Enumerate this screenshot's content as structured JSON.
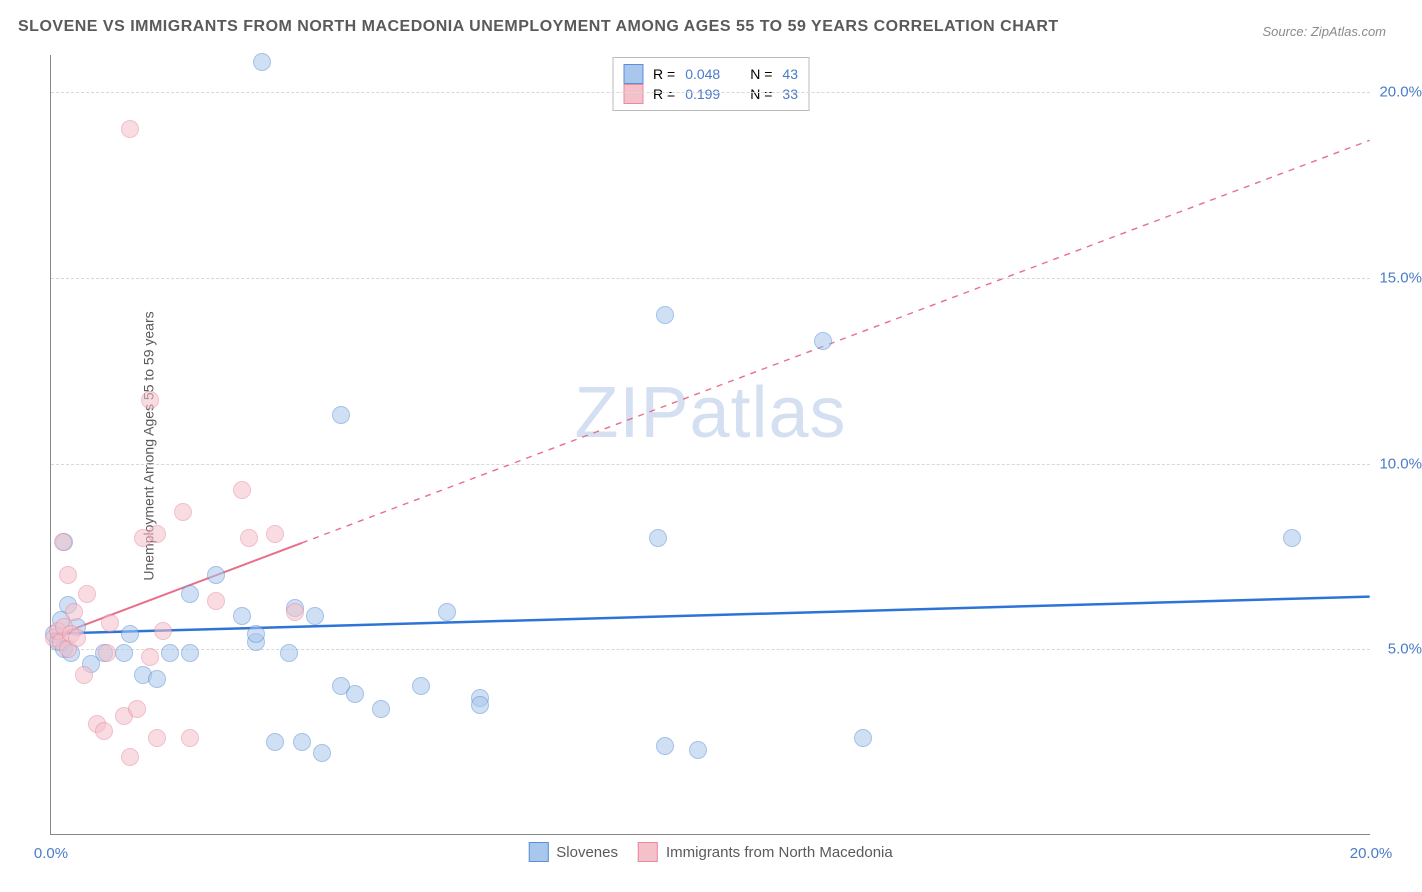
{
  "title": "SLOVENE VS IMMIGRANTS FROM NORTH MACEDONIA UNEMPLOYMENT AMONG AGES 55 TO 59 YEARS CORRELATION CHART",
  "source_label": "Source: ZipAtlas.com",
  "ylabel": "Unemployment Among Ages 55 to 59 years",
  "watermark": "ZIPatlas",
  "chart": {
    "type": "scatter",
    "xlim": [
      0,
      20
    ],
    "ylim": [
      0,
      21
    ],
    "xtick_labels": [
      "0.0%",
      "20.0%"
    ],
    "xtick_positions": [
      0,
      20
    ],
    "ytick_labels": [
      "5.0%",
      "10.0%",
      "15.0%",
      "20.0%"
    ],
    "ytick_positions": [
      5,
      10,
      15,
      20
    ],
    "grid_color": "#d8d8d8",
    "background_color": "#ffffff",
    "axis_color": "#888888",
    "tick_label_color": "#4a7bc8",
    "marker_radius": 9,
    "marker_opacity": 0.55,
    "series": [
      {
        "name": "Slovenes",
        "fill_color": "#a9c7ec",
        "stroke_color": "#5b8fd6",
        "trend": {
          "x1": 0,
          "y1": 5.4,
          "x2": 20,
          "y2": 6.4,
          "solid_until_x": 20,
          "color": "#2e74d6",
          "width": 2.5
        },
        "legend_top": {
          "R": "0.048",
          "N": "43"
        },
        "points": [
          [
            0.05,
            5.4
          ],
          [
            0.1,
            5.2
          ],
          [
            0.2,
            5.0
          ],
          [
            0.25,
            6.2
          ],
          [
            0.3,
            4.9
          ],
          [
            0.2,
            7.9
          ],
          [
            0.6,
            4.6
          ],
          [
            0.8,
            4.9
          ],
          [
            1.1,
            4.9
          ],
          [
            1.2,
            5.4
          ],
          [
            1.4,
            4.3
          ],
          [
            1.6,
            4.2
          ],
          [
            1.8,
            4.9
          ],
          [
            2.1,
            4.9
          ],
          [
            2.1,
            6.5
          ],
          [
            2.5,
            7.0
          ],
          [
            2.9,
            5.9
          ],
          [
            3.1,
            5.2
          ],
          [
            3.1,
            5.4
          ],
          [
            3.2,
            20.8
          ],
          [
            3.4,
            2.5
          ],
          [
            3.6,
            4.9
          ],
          [
            3.7,
            6.1
          ],
          [
            3.8,
            2.5
          ],
          [
            4.0,
            5.9
          ],
          [
            4.1,
            2.2
          ],
          [
            4.4,
            4.0
          ],
          [
            4.4,
            11.3
          ],
          [
            4.6,
            3.8
          ],
          [
            5.0,
            3.4
          ],
          [
            5.6,
            4.0
          ],
          [
            6.0,
            6.0
          ],
          [
            6.5,
            3.7
          ],
          [
            6.5,
            3.5
          ],
          [
            9.3,
            14.0
          ],
          [
            9.2,
            8.0
          ],
          [
            9.3,
            2.4
          ],
          [
            9.8,
            2.3
          ],
          [
            11.7,
            13.3
          ],
          [
            12.3,
            2.6
          ],
          [
            18.8,
            8.0
          ],
          [
            0.4,
            5.6
          ],
          [
            0.15,
            5.8
          ]
        ]
      },
      {
        "name": "Immigrants from North Macedonia",
        "fill_color": "#f4c0ca",
        "stroke_color": "#e88aa0",
        "trend": {
          "x1": 0,
          "y1": 5.3,
          "x2": 20,
          "y2": 18.7,
          "solid_until_x": 3.8,
          "color": "#e86f8a",
          "width": 2
        },
        "legend_top": {
          "R": "0.199",
          "N": "33"
        },
        "points": [
          [
            0.05,
            5.3
          ],
          [
            0.1,
            5.5
          ],
          [
            0.15,
            5.2
          ],
          [
            0.2,
            5.6
          ],
          [
            0.25,
            5.0
          ],
          [
            0.3,
            5.4
          ],
          [
            0.35,
            6.0
          ],
          [
            0.4,
            5.3
          ],
          [
            0.25,
            7.0
          ],
          [
            0.5,
            4.3
          ],
          [
            0.55,
            6.5
          ],
          [
            0.7,
            3.0
          ],
          [
            0.8,
            2.8
          ],
          [
            0.85,
            4.9
          ],
          [
            0.9,
            5.7
          ],
          [
            1.1,
            3.2
          ],
          [
            1.2,
            19.0
          ],
          [
            1.2,
            2.1
          ],
          [
            1.3,
            3.4
          ],
          [
            1.4,
            8.0
          ],
          [
            1.5,
            11.7
          ],
          [
            1.5,
            4.8
          ],
          [
            1.6,
            2.6
          ],
          [
            1.6,
            8.1
          ],
          [
            1.7,
            5.5
          ],
          [
            2.0,
            8.7
          ],
          [
            2.1,
            2.6
          ],
          [
            2.5,
            6.3
          ],
          [
            2.9,
            9.3
          ],
          [
            3.0,
            8.0
          ],
          [
            3.4,
            8.1
          ],
          [
            3.7,
            6.0
          ],
          [
            0.18,
            7.9
          ]
        ]
      }
    ]
  },
  "legend_top_labels": {
    "R_prefix": "R =",
    "N_prefix": "N ="
  },
  "legend_bottom": {
    "series1_label": "Slovenes",
    "series2_label": "Immigrants from North Macedonia"
  }
}
